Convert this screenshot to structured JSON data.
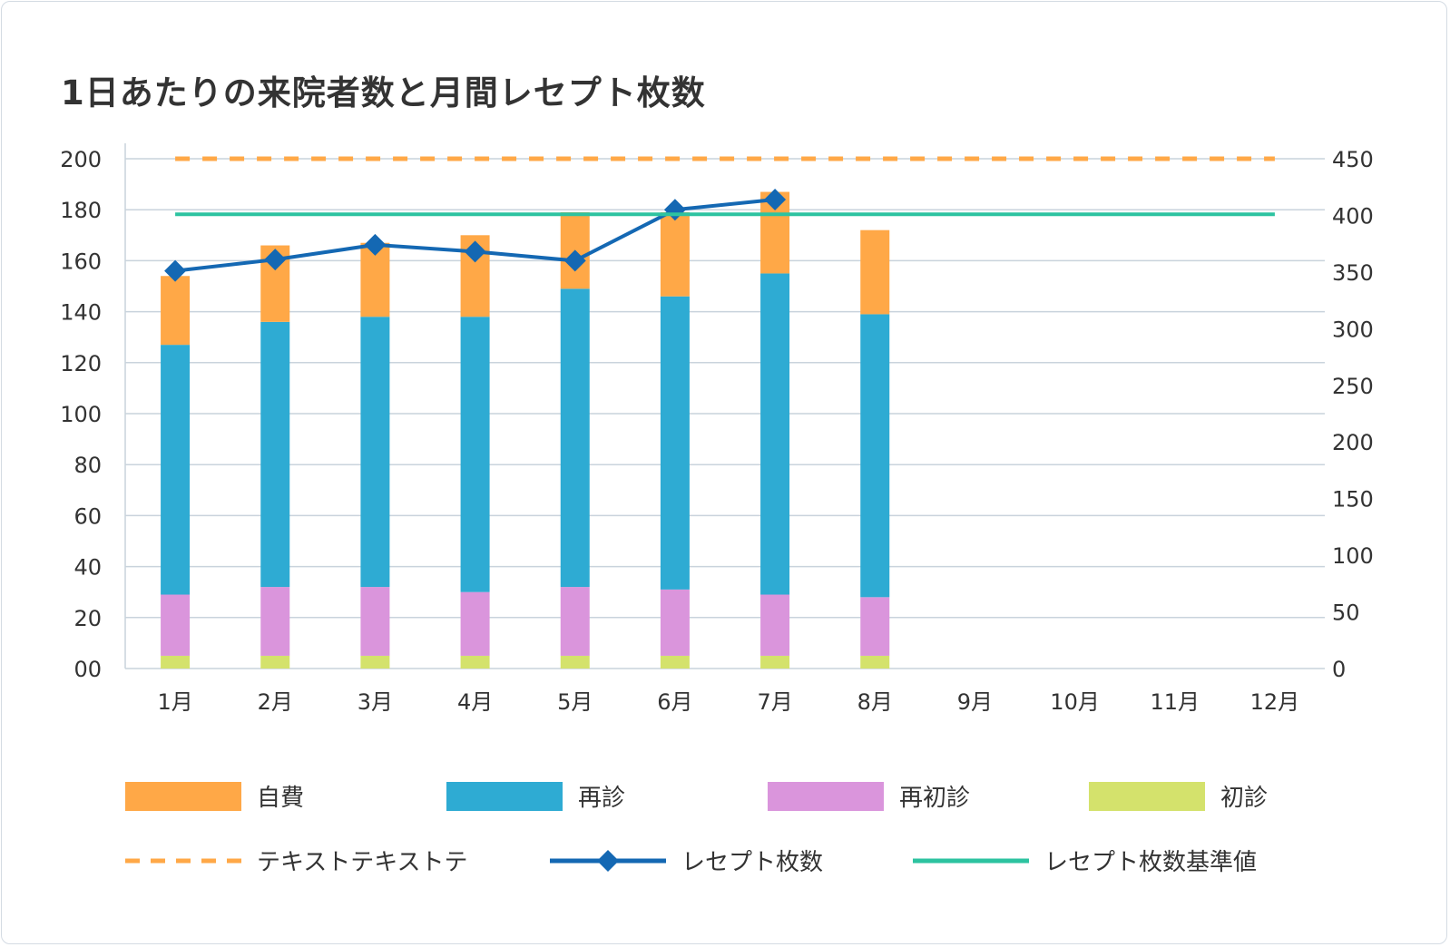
{
  "chart_data": {
    "type": "bar",
    "title": "1日あたりの来院者数と月間レセプト枚数",
    "categories": [
      "1月",
      "2月",
      "3月",
      "4月",
      "5月",
      "6月",
      "7月",
      "8月",
      "9月",
      "10月",
      "11月",
      "12月"
    ],
    "y_left": {
      "range": [
        0,
        200
      ],
      "ticks": [
        "00",
        "20",
        "40",
        "60",
        "80",
        "100",
        "120",
        "140",
        "160",
        "180",
        "200"
      ]
    },
    "y_right": {
      "range": [
        0,
        450
      ],
      "ticks": [
        "0",
        "50",
        "100",
        "150",
        "200",
        "250",
        "300",
        "350",
        "400",
        "450"
      ]
    },
    "grid": true,
    "legend_position": "bottom",
    "series": [
      {
        "name": "初診",
        "type": "bar",
        "stack": "visits",
        "axis": "left",
        "color": "#d4e26c",
        "values": [
          5,
          5,
          5,
          5,
          5,
          5,
          5,
          5,
          null,
          null,
          null,
          null
        ]
      },
      {
        "name": "再初診",
        "type": "bar",
        "stack": "visits",
        "axis": "left",
        "color": "#da95dc",
        "values": [
          24,
          27,
          27,
          25,
          27,
          26,
          24,
          23,
          null,
          null,
          null,
          null
        ]
      },
      {
        "name": "再診",
        "type": "bar",
        "stack": "visits",
        "axis": "left",
        "color": "#2eabd3",
        "values": [
          98,
          104,
          106,
          108,
          117,
          115,
          126,
          111,
          null,
          null,
          null,
          null
        ]
      },
      {
        "name": "自費",
        "type": "bar",
        "stack": "visits",
        "axis": "left",
        "color": "#ffa847",
        "values": [
          27,
          30,
          29,
          32,
          30,
          33,
          32,
          33,
          null,
          null,
          null,
          null
        ]
      },
      {
        "name": "レセプト枚数",
        "type": "line",
        "marker": "diamond",
        "axis": "right",
        "color": "#1468b3",
        "values": [
          351,
          361,
          374,
          368,
          360,
          405,
          414,
          null,
          null,
          null,
          null,
          null
        ]
      },
      {
        "name": "レセプト枚数基準値",
        "type": "line",
        "axis": "right",
        "color": "#2dc3a0",
        "values": [
          401,
          401,
          401,
          401,
          401,
          401,
          401,
          401,
          401,
          401,
          401,
          401
        ]
      },
      {
        "name": "テキストテキストテ",
        "type": "line",
        "style": "dashed",
        "axis": "left",
        "color": "#ffa847",
        "values": [
          200,
          200,
          200,
          200,
          200,
          200,
          200,
          200,
          200,
          200,
          200,
          200
        ]
      }
    ],
    "legend_order": [
      "自費",
      "再診",
      "再初診",
      "初診",
      "テキストテキストテ",
      "レセプト枚数",
      "レセプト枚数基準値"
    ]
  }
}
